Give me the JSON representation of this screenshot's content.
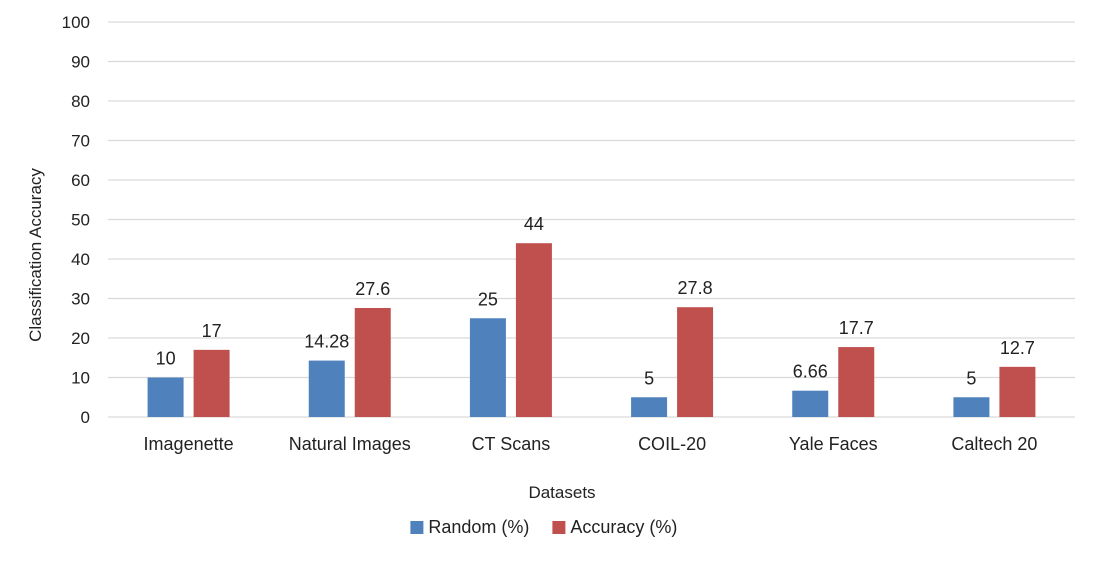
{
  "chart_data": {
    "type": "bar",
    "categories": [
      "Imagenette",
      "Natural Images",
      "CT Scans",
      "COIL-20",
      "Yale Faces",
      "Caltech 20"
    ],
    "series": [
      {
        "name": "Random (%)",
        "color": "#4f81bd",
        "values": [
          10,
          14.28,
          25,
          5,
          6.66,
          5
        ]
      },
      {
        "name": "Accuracy (%)",
        "color": "#c0504d",
        "values": [
          17,
          27.6,
          44,
          27.8,
          17.7,
          12.7
        ]
      }
    ],
    "data_labels": [
      [
        "10",
        "14.28",
        "25",
        "5",
        "6.66",
        "5"
      ],
      [
        "17",
        "27.6",
        "44",
        "27.8",
        "17.7",
        "12.7"
      ]
    ],
    "yticks": [
      0,
      10,
      20,
      30,
      40,
      50,
      60,
      70,
      80,
      90,
      100
    ],
    "ylim": [
      0,
      100
    ],
    "xlabel": "Datasets",
    "ylabel": "Classification Accuracy",
    "title": "",
    "grid": true,
    "legend_position": "bottom"
  }
}
